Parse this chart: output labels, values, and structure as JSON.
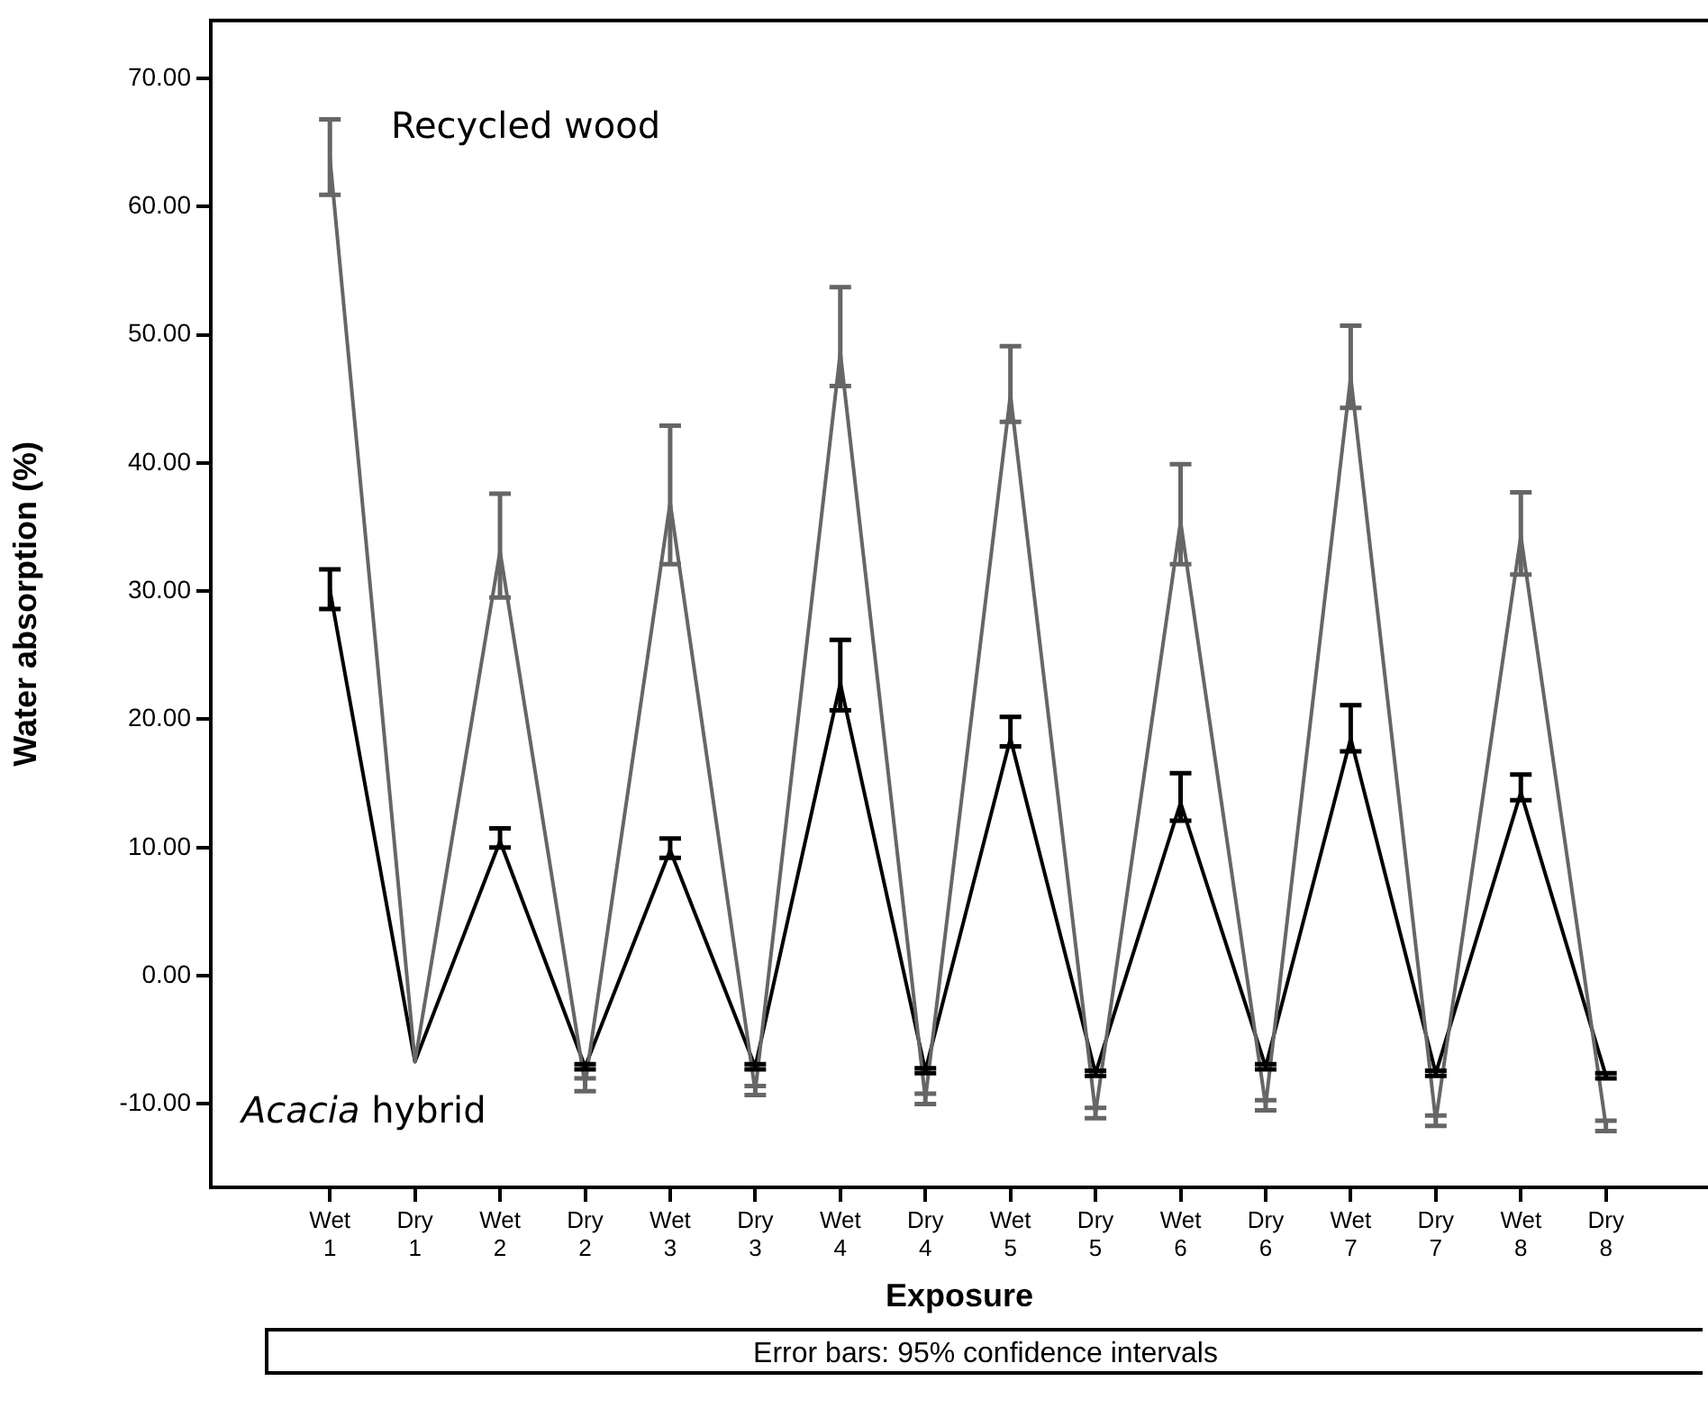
{
  "chart_data": {
    "type": "line",
    "xlabel": "Exposure",
    "ylabel": "Water absorption (%)",
    "categories": [
      "Wet 1",
      "Dry 1",
      "Wet 2",
      "Dry 2",
      "Wet 3",
      "Dry 3",
      "Wet 4",
      "Dry 4",
      "Wet 5",
      "Dry 5",
      "Wet 6",
      "Dry 6",
      "Wet 7",
      "Dry 7",
      "Wet 8",
      "Dry 8"
    ],
    "series": [
      {
        "name": "Recycled wood",
        "color": "#666666",
        "values": [
          63.8,
          -6.7,
          33.1,
          -8.5,
          36.9,
          -9.0,
          48.6,
          -9.6,
          45.3,
          -10.7,
          35.4,
          -10.1,
          46.7,
          -11.3,
          34.3,
          -11.7
        ],
        "errors": [
          [
            60.9,
            66.8
          ],
          null,
          [
            29.5,
            37.6
          ],
          [
            -9.0,
            -8.0
          ],
          [
            32.1,
            42.9
          ],
          [
            -9.3,
            -8.6
          ],
          [
            46.0,
            53.7
          ],
          [
            -10.0,
            -9.2
          ],
          [
            43.2,
            49.1
          ],
          [
            -11.1,
            -10.3
          ],
          [
            32.1,
            39.9
          ],
          [
            -10.5,
            -9.7
          ],
          [
            44.3,
            50.7
          ],
          [
            -11.7,
            -10.9
          ],
          [
            31.3,
            37.7
          ],
          [
            -12.1,
            -11.3
          ]
        ]
      },
      {
        "name": "Acacia hybrid",
        "color": "#000000",
        "values": [
          30.1,
          -6.7,
          10.5,
          -7.1,
          9.8,
          -7.1,
          22.8,
          -7.4,
          18.5,
          -7.6,
          13.5,
          -7.1,
          18.5,
          -7.6,
          14.3,
          -7.8
        ],
        "errors": [
          [
            28.6,
            31.7
          ],
          null,
          [
            10.0,
            11.5
          ],
          [
            -7.3,
            -6.9
          ],
          [
            9.2,
            10.7
          ],
          [
            -7.3,
            -6.9
          ],
          [
            20.7,
            26.2
          ],
          [
            -7.6,
            -7.2
          ],
          [
            17.9,
            20.2
          ],
          [
            -7.8,
            -7.4
          ],
          [
            12.1,
            15.8
          ],
          [
            -7.3,
            -6.9
          ],
          [
            17.5,
            21.1
          ],
          [
            -7.8,
            -7.4
          ],
          [
            13.7,
            15.7
          ],
          [
            -8.0,
            -7.6
          ]
        ]
      }
    ],
    "ylim": [
      -16.5,
      74.5
    ],
    "yticks": [
      {
        "value": -10,
        "label": "-10.00"
      },
      {
        "value": 0,
        "label": "0.00"
      },
      {
        "value": 10,
        "label": "10.00"
      },
      {
        "value": 20,
        "label": "20.00"
      },
      {
        "value": 30,
        "label": "30.00"
      },
      {
        "value": 40,
        "label": "40.00"
      },
      {
        "value": 50,
        "label": "50.00"
      },
      {
        "value": 60,
        "label": "60.00"
      },
      {
        "value": 70,
        "label": "70.00"
      }
    ],
    "grid": false,
    "legend": false,
    "marker": "none",
    "line_style": "solid",
    "annotations": [
      "Error bars: 95% confidence intervals"
    ]
  }
}
